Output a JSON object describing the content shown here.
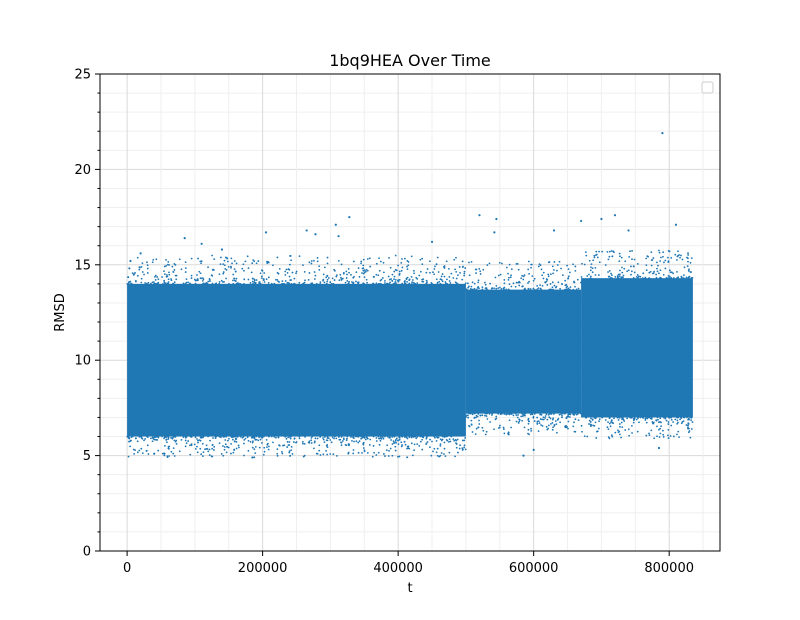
{
  "chart_data": {
    "type": "scatter",
    "title": "1bq9HEA Over Time",
    "xlabel": "t",
    "ylabel": "RMSD",
    "xlim": [
      -40000,
      875000
    ],
    "ylim": [
      0,
      25
    ],
    "x_ticks": [
      0,
      200000,
      400000,
      600000,
      800000
    ],
    "y_ticks": [
      0,
      5,
      10,
      15,
      20,
      25
    ],
    "grid": true,
    "legend": "top-right (empty)",
    "marker_color": "#1f77b4",
    "band_segments": [
      {
        "t_start": 0,
        "t_end": 500000,
        "rmsd_low": 6.0,
        "rmsd_high": 14.0
      },
      {
        "t_start": 500000,
        "t_end": 670000,
        "rmsd_low": 7.2,
        "rmsd_high": 13.7
      },
      {
        "t_start": 670000,
        "t_end": 835000,
        "rmsd_low": 7.0,
        "rmsd_high": 14.3
      }
    ],
    "outliers": [
      {
        "t": 5000,
        "rmsd": 15.2
      },
      {
        "t": 20000,
        "rmsd": 15.6
      },
      {
        "t": 40000,
        "rmsd": 5.1
      },
      {
        "t": 85000,
        "rmsd": 16.4
      },
      {
        "t": 110000,
        "rmsd": 16.1
      },
      {
        "t": 140000,
        "rmsd": 15.8
      },
      {
        "t": 185000,
        "rmsd": 4.9
      },
      {
        "t": 205000,
        "rmsd": 16.7
      },
      {
        "t": 265000,
        "rmsd": 16.8
      },
      {
        "t": 278000,
        "rmsd": 16.6
      },
      {
        "t": 308000,
        "rmsd": 17.1
      },
      {
        "t": 312000,
        "rmsd": 16.5
      },
      {
        "t": 328000,
        "rmsd": 17.5
      },
      {
        "t": 450000,
        "rmsd": 16.2
      },
      {
        "t": 520000,
        "rmsd": 17.6
      },
      {
        "t": 545000,
        "rmsd": 17.4
      },
      {
        "t": 542000,
        "rmsd": 16.7
      },
      {
        "t": 585000,
        "rmsd": 5.0
      },
      {
        "t": 600000,
        "rmsd": 5.3
      },
      {
        "t": 630000,
        "rmsd": 16.8
      },
      {
        "t": 670000,
        "rmsd": 17.3
      },
      {
        "t": 700000,
        "rmsd": 17.4
      },
      {
        "t": 720000,
        "rmsd": 17.6
      },
      {
        "t": 740000,
        "rmsd": 16.8
      },
      {
        "t": 785000,
        "rmsd": 5.4
      },
      {
        "t": 790000,
        "rmsd": 21.9
      },
      {
        "t": 810000,
        "rmsd": 17.1
      }
    ]
  }
}
